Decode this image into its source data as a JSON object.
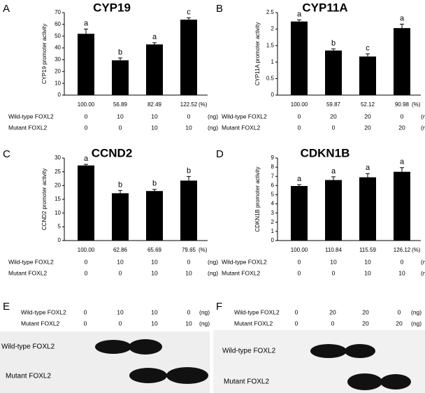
{
  "chart_data": [
    {
      "type": "bar",
      "panel_label": "A",
      "title": "CYP19",
      "ylabel": "CYP19 promoter activity",
      "categories": [
        "100.00",
        "56.89",
        "82.49",
        "122.52"
      ],
      "category_unit": "(%)",
      "values": [
        52,
        29.5,
        43,
        64
      ],
      "errors": [
        4,
        2,
        1.5,
        1.5
      ],
      "annotations": [
        "a",
        "b",
        "a",
        "c"
      ],
      "color": "#000000",
      "ylim": [
        0,
        70
      ],
      "yticks": [
        0,
        10,
        20,
        30,
        40,
        50,
        60,
        70
      ],
      "conditions": [
        {
          "name": "Wild-type FOXL2",
          "amounts": [
            0,
            10,
            10,
            0
          ]
        },
        {
          "name": "Mutant FOXL2",
          "amounts": [
            0,
            0,
            10,
            10
          ]
        }
      ],
      "amount_unit": "(ng)"
    },
    {
      "type": "bar",
      "panel_label": "B",
      "title": "CYP11A",
      "ylabel": "CYP11A promoter activity",
      "categories": [
        "100.00",
        "59.87",
        "52.12",
        "90.98"
      ],
      "category_unit": "(%)",
      "values": [
        2.23,
        1.35,
        1.17,
        2.03
      ],
      "errors": [
        0.05,
        0.05,
        0.08,
        0.12
      ],
      "annotations": [
        "a",
        "b",
        "c",
        "a"
      ],
      "color": "#000000",
      "ylim": [
        0,
        2.5
      ],
      "yticks": [
        0,
        0.5,
        1,
        1.5,
        2,
        2.5
      ],
      "conditions": [
        {
          "name": "Wild-type FOXL2",
          "amounts": [
            0,
            20,
            20,
            0
          ]
        },
        {
          "name": "Mutant FOXL2",
          "amounts": [
            0,
            0,
            20,
            20
          ]
        }
      ],
      "amount_unit": "(ng)"
    },
    {
      "type": "bar",
      "panel_label": "C",
      "title": "CCND2",
      "ylabel": "CCND2 promoter activity",
      "categories": [
        "100.00",
        "62.86",
        "65.69",
        "79.65"
      ],
      "category_unit": "(%)",
      "values": [
        27.3,
        17.2,
        18,
        21.8
      ],
      "errors": [
        0.4,
        1,
        0.6,
        1.5
      ],
      "annotations": [
        "a",
        "b",
        "b",
        "b"
      ],
      "color": "#000000",
      "ylim": [
        0,
        30
      ],
      "yticks": [
        0,
        5,
        10,
        15,
        20,
        25,
        30
      ],
      "conditions": [
        {
          "name": "Wild-type FOXL2",
          "amounts": [
            0,
            10,
            10,
            0
          ]
        },
        {
          "name": "Mutant FOXL2",
          "amounts": [
            0,
            0,
            10,
            10
          ]
        }
      ],
      "amount_unit": "(ng)"
    },
    {
      "type": "bar",
      "panel_label": "D",
      "title": "CDKN1B",
      "ylabel": "CDKN1B promoter activity",
      "categories": [
        "100.00",
        "110.84",
        "115.59",
        "126.12"
      ],
      "category_unit": "(%)",
      "values": [
        5.95,
        6.6,
        6.9,
        7.5
      ],
      "errors": [
        0.15,
        0.35,
        0.4,
        0.45
      ],
      "annotations": [
        "a",
        "a",
        "a",
        "a"
      ],
      "color": "#000000",
      "ylim": [
        0,
        9
      ],
      "yticks": [
        0,
        1,
        2,
        3,
        4,
        5,
        6,
        7,
        8,
        9
      ],
      "conditions": [
        {
          "name": "Wild-type FOXL2",
          "amounts": [
            0,
            10,
            10,
            0
          ]
        },
        {
          "name": "Mutant FOXL2",
          "amounts": [
            0,
            0,
            10,
            10
          ]
        }
      ],
      "amount_unit": "(ng)"
    }
  ],
  "blots": [
    {
      "panel_label": "E",
      "conditions": [
        {
          "name": "Wild-type FOXL2",
          "amounts": [
            0,
            10,
            10,
            0
          ]
        },
        {
          "name": "Mutant FOXL2",
          "amounts": [
            0,
            0,
            10,
            10
          ]
        }
      ],
      "amount_unit": "(ng)",
      "lanes": [
        "Wild-type FOXL2",
        "Mutant FOXL2"
      ]
    },
    {
      "panel_label": "F",
      "conditions": [
        {
          "name": "Wild-type FOXL2",
          "amounts": [
            0,
            20,
            20,
            0
          ]
        },
        {
          "name": "Mutant FOXL2",
          "amounts": [
            0,
            0,
            20,
            20
          ]
        }
      ],
      "amount_unit": "(ng)",
      "lanes": [
        "Wild-type FOXL2",
        "Mutant FOXL2"
      ]
    }
  ]
}
